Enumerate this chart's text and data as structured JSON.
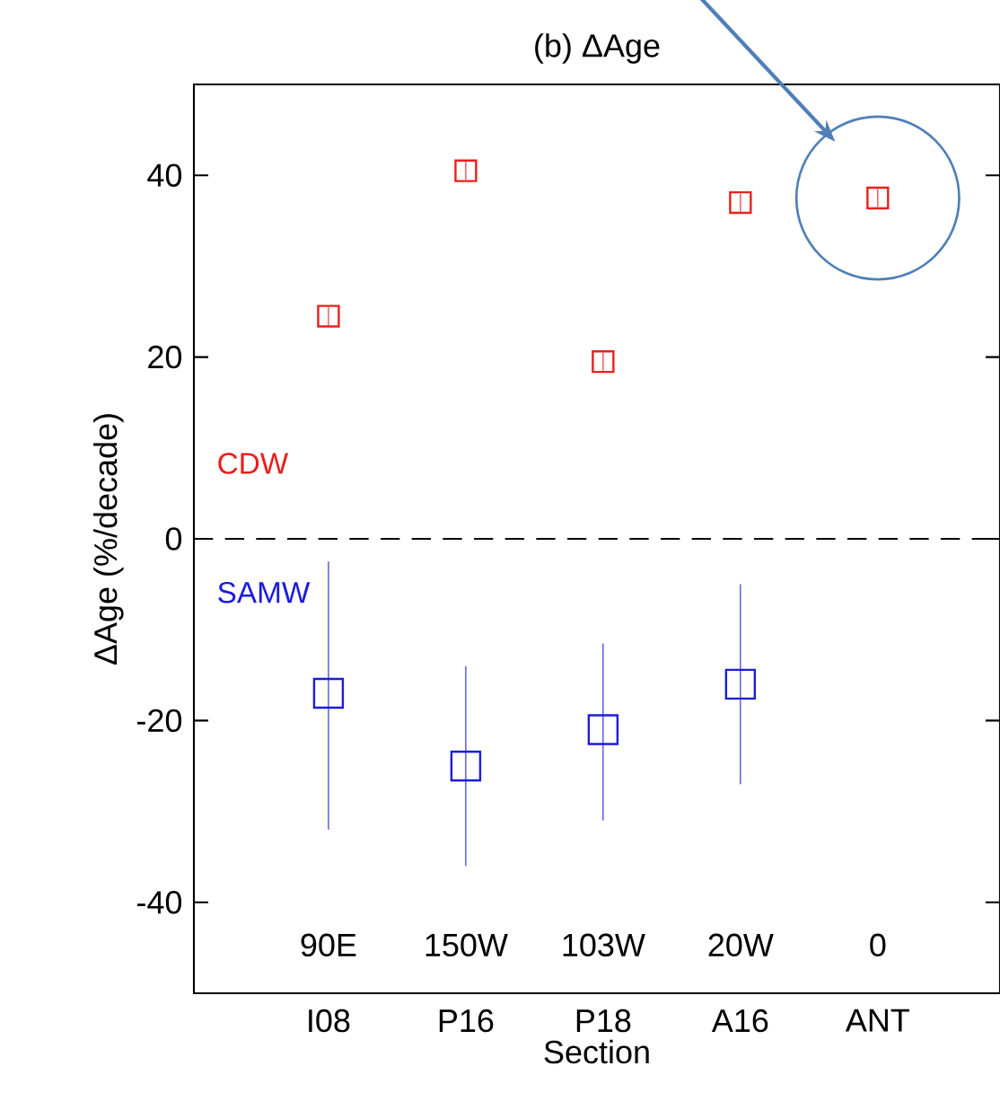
{
  "chart_data": {
    "type": "scatter",
    "title": "(b) ΔAge",
    "xlabel": "Section",
    "ylabel": "ΔAge (%/decade)",
    "categories": [
      "I08",
      "P16",
      "P18",
      "A16",
      "ANT"
    ],
    "ylim": [
      -50,
      50
    ],
    "yticks": [
      -40,
      -20,
      0,
      20,
      40
    ],
    "marker": "square",
    "grid": false,
    "ref_lines": [
      {
        "axis": "y",
        "value": 0,
        "line_style": "dashed",
        "color": "#000000"
      }
    ],
    "series": [
      {
        "name": "CDW",
        "color": "#e8201c",
        "values": [
          24.5,
          40.5,
          19.5,
          37,
          37.5
        ],
        "errors": [
          [
            23.5,
            25.5
          ],
          [
            39.5,
            41.5
          ],
          [
            18.5,
            20.5
          ],
          [
            36,
            38
          ],
          [
            36.5,
            38.5
          ]
        ]
      },
      {
        "name": "SAMW",
        "color": "#1c1cd8",
        "values": [
          -17,
          -25,
          -21,
          -16,
          null
        ],
        "errors": [
          [
            -32,
            -2.5
          ],
          [
            -36,
            -14
          ],
          [
            -31,
            -11.5
          ],
          [
            -27,
            -5
          ],
          null
        ]
      }
    ],
    "annotations": [
      "90E",
      "150W",
      "103W",
      "20W",
      "0"
    ]
  }
}
